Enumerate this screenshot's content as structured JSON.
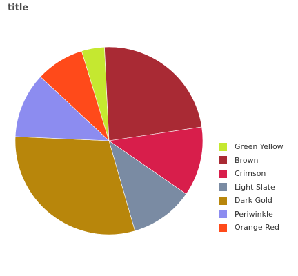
{
  "chart_data": {
    "type": "pie",
    "title": "title",
    "series": [
      {
        "name": "Green Yellow",
        "value": 3.8,
        "color": "#c5e830"
      },
      {
        "name": "Brown",
        "value": 22.5,
        "color": "#a92a34"
      },
      {
        "name": "Crimson",
        "value": 11.5,
        "color": "#d81e4b"
      },
      {
        "name": "Light Slate",
        "value": 10.5,
        "color": "#7a8ba3"
      },
      {
        "name": "Dark Gold",
        "value": 29.0,
        "color": "#b8860b"
      },
      {
        "name": "Periwinkle",
        "value": 10.8,
        "color": "#8c8cf0"
      },
      {
        "name": "Orange Red",
        "value": 8.0,
        "color": "#ff4a1a"
      }
    ],
    "legend_position": "right"
  }
}
